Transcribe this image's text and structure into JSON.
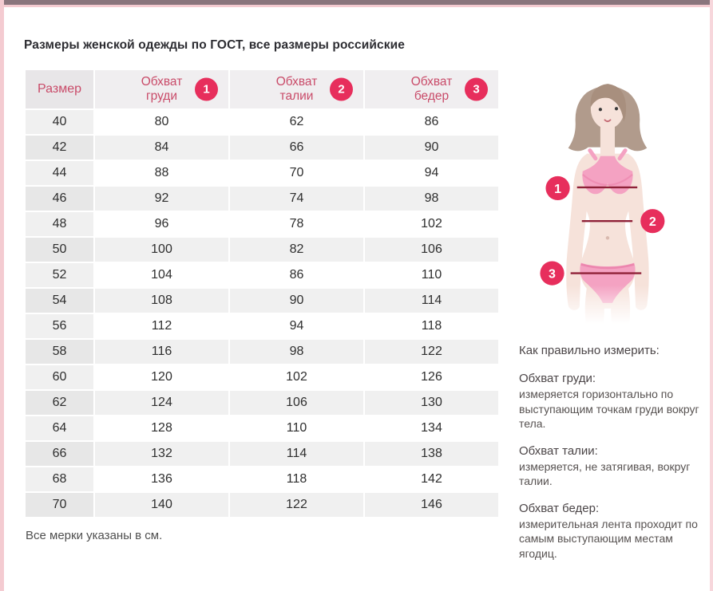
{
  "page": {
    "title": "Размеры женской одежды по ГОСТ, все размеры российские",
    "footnote": "Все мерки указаны в см."
  },
  "colors": {
    "accent_badge": "#e72e5c",
    "header_text": "#c94b69",
    "top_bar": "#8a757d",
    "frame_pink": "#f4cbd1",
    "measure_line": "#8f2138",
    "row_gray": "#f0f0f0"
  },
  "table": {
    "size_header": "Размер",
    "columns": [
      {
        "label_line1": "Обхват",
        "label_line2": "груди",
        "badge": "1"
      },
      {
        "label_line1": "Обхват",
        "label_line2": "талии",
        "badge": "2"
      },
      {
        "label_line1": "Обхват",
        "label_line2": "бедер",
        "badge": "3"
      }
    ],
    "rows": [
      {
        "size": "40",
        "chest": "80",
        "waist": "62",
        "hips": "86"
      },
      {
        "size": "42",
        "chest": "84",
        "waist": "66",
        "hips": "90"
      },
      {
        "size": "44",
        "chest": "88",
        "waist": "70",
        "hips": "94"
      },
      {
        "size": "46",
        "chest": "92",
        "waist": "74",
        "hips": "98"
      },
      {
        "size": "48",
        "chest": "96",
        "waist": "78",
        "hips": "102"
      },
      {
        "size": "50",
        "chest": "100",
        "waist": "82",
        "hips": "106"
      },
      {
        "size": "52",
        "chest": "104",
        "waist": "86",
        "hips": "110"
      },
      {
        "size": "54",
        "chest": "108",
        "waist": "90",
        "hips": "114"
      },
      {
        "size": "56",
        "chest": "112",
        "waist": "94",
        "hips": "118"
      },
      {
        "size": "58",
        "chest": "116",
        "waist": "98",
        "hips": "122"
      },
      {
        "size": "60",
        "chest": "120",
        "waist": "102",
        "hips": "126"
      },
      {
        "size": "62",
        "chest": "124",
        "waist": "106",
        "hips": "130"
      },
      {
        "size": "64",
        "chest": "128",
        "waist": "110",
        "hips": "134"
      },
      {
        "size": "66",
        "chest": "132",
        "waist": "114",
        "hips": "138"
      },
      {
        "size": "68",
        "chest": "136",
        "waist": "118",
        "hips": "142"
      },
      {
        "size": "70",
        "chest": "140",
        "waist": "122",
        "hips": "146"
      }
    ]
  },
  "figure": {
    "markers": [
      {
        "number": "1"
      },
      {
        "number": "2"
      },
      {
        "number": "3"
      }
    ]
  },
  "instructions": {
    "title": "Как правильно измерить:",
    "items": [
      {
        "heading": "Обхват груди:",
        "text": "измеряется горизонтально по выступающим точкам груди вокруг тела."
      },
      {
        "heading": "Обхват талии:",
        "text": "измеряется, не затягивая, вокруг талии."
      },
      {
        "heading": "Обхват бедер:",
        "text": "измерительная лента проходит по самым выступающим местам ягодиц."
      }
    ]
  }
}
